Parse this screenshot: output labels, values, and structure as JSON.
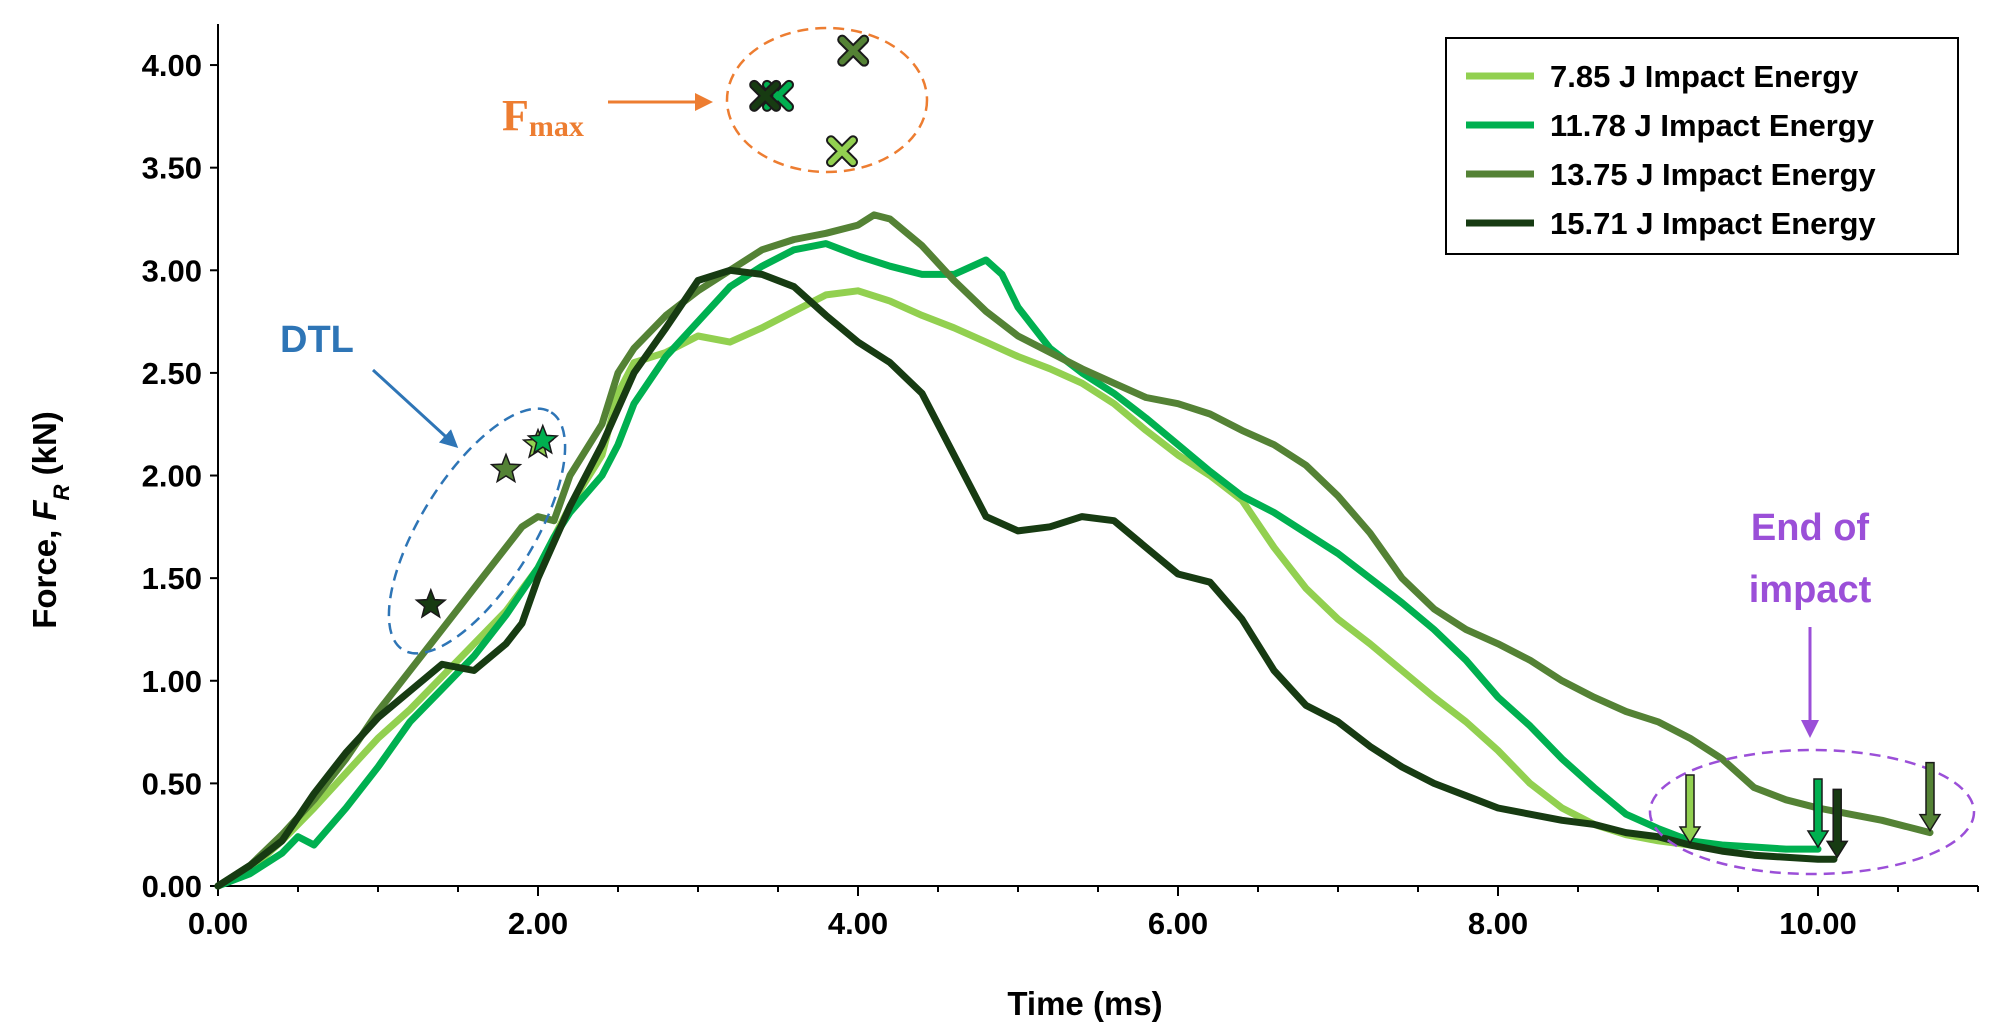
{
  "chart_data": {
    "type": "line",
    "title": "",
    "xlabel": "Time (ms)",
    "ylabel_prefix": "Force, ",
    "ylabel_var": "F",
    "ylabel_sub": "R",
    "ylabel_suffix": " (kN)",
    "xlim": [
      0,
      11
    ],
    "ylim": [
      0,
      4.2
    ],
    "xticks": [
      0,
      2,
      4,
      6,
      8,
      10
    ],
    "yticks": [
      0,
      0.5,
      1,
      1.5,
      2,
      2.5,
      3,
      3.5,
      4
    ],
    "xtick_labels": [
      "0.00",
      "2.00",
      "4.00",
      "6.00",
      "8.00",
      "10.00"
    ],
    "ytick_labels": [
      "0.00",
      "0.50",
      "1.00",
      "1.50",
      "2.00",
      "2.50",
      "3.00",
      "3.50",
      "4.00"
    ],
    "legend_position": "top-right",
    "series": [
      {
        "name": "7.85 J Impact Energy",
        "color": "#92D050",
        "x": [
          0,
          0.2,
          0.4,
          0.6,
          0.8,
          1.0,
          1.2,
          1.4,
          1.6,
          1.8,
          2.0,
          2.1,
          2.2,
          2.4,
          2.5,
          2.6,
          2.8,
          3.0,
          3.2,
          3.4,
          3.6,
          3.8,
          4.0,
          4.2,
          4.4,
          4.6,
          4.8,
          5.0,
          5.2,
          5.4,
          5.6,
          5.8,
          6.0,
          6.2,
          6.4,
          6.6,
          6.8,
          7.0,
          7.2,
          7.4,
          7.6,
          7.8,
          8.0,
          8.2,
          8.4,
          8.6,
          8.8,
          9.0,
          9.2
        ],
        "y": [
          0,
          0.08,
          0.22,
          0.38,
          0.55,
          0.72,
          0.86,
          1.02,
          1.18,
          1.34,
          1.55,
          1.7,
          1.85,
          2.1,
          2.4,
          2.55,
          2.6,
          2.68,
          2.65,
          2.72,
          2.8,
          2.88,
          2.9,
          2.85,
          2.78,
          2.72,
          2.65,
          2.58,
          2.52,
          2.45,
          2.35,
          2.22,
          2.1,
          2.0,
          1.88,
          1.65,
          1.45,
          1.3,
          1.18,
          1.05,
          0.92,
          0.8,
          0.66,
          0.5,
          0.38,
          0.3,
          0.25,
          0.22,
          0.2
        ]
      },
      {
        "name": "11.78 J Impact Energy",
        "color": "#00B050",
        "x": [
          0,
          0.2,
          0.4,
          0.5,
          0.6,
          0.8,
          1.0,
          1.2,
          1.4,
          1.6,
          1.8,
          2.0,
          2.1,
          2.2,
          2.4,
          2.5,
          2.6,
          2.8,
          3.0,
          3.2,
          3.4,
          3.6,
          3.8,
          4.0,
          4.2,
          4.4,
          4.6,
          4.8,
          4.9,
          5.0,
          5.2,
          5.4,
          5.6,
          5.8,
          6.0,
          6.2,
          6.4,
          6.6,
          6.8,
          7.0,
          7.2,
          7.4,
          7.6,
          7.8,
          8.0,
          8.2,
          8.4,
          8.6,
          8.8,
          9.0,
          9.2,
          9.4,
          9.6,
          9.8,
          10.0
        ],
        "y": [
          0,
          0.06,
          0.16,
          0.24,
          0.2,
          0.38,
          0.58,
          0.8,
          0.96,
          1.12,
          1.32,
          1.55,
          1.7,
          1.82,
          2.0,
          2.15,
          2.35,
          2.58,
          2.75,
          2.92,
          3.02,
          3.1,
          3.13,
          3.07,
          3.02,
          2.98,
          2.98,
          3.05,
          2.98,
          2.82,
          2.62,
          2.5,
          2.4,
          2.28,
          2.15,
          2.02,
          1.9,
          1.82,
          1.72,
          1.62,
          1.5,
          1.38,
          1.25,
          1.1,
          0.92,
          0.78,
          0.62,
          0.48,
          0.35,
          0.28,
          0.22,
          0.2,
          0.19,
          0.18,
          0.18
        ]
      },
      {
        "name": "13.75 J Impact Energy",
        "color": "#548235",
        "x": [
          0,
          0.2,
          0.4,
          0.6,
          0.8,
          1.0,
          1.2,
          1.4,
          1.6,
          1.8,
          1.9,
          2.0,
          2.1,
          2.2,
          2.4,
          2.5,
          2.6,
          2.8,
          3.0,
          3.2,
          3.4,
          3.6,
          3.8,
          4.0,
          4.1,
          4.2,
          4.4,
          4.6,
          4.8,
          5.0,
          5.2,
          5.4,
          5.6,
          5.8,
          6.0,
          6.2,
          6.4,
          6.6,
          6.8,
          7.0,
          7.2,
          7.4,
          7.6,
          7.8,
          8.0,
          8.2,
          8.4,
          8.6,
          8.8,
          9.0,
          9.2,
          9.4,
          9.6,
          9.8,
          10.0,
          10.2,
          10.4,
          10.6,
          10.7
        ],
        "y": [
          0,
          0.1,
          0.25,
          0.42,
          0.62,
          0.85,
          1.05,
          1.25,
          1.45,
          1.65,
          1.75,
          1.8,
          1.78,
          2.0,
          2.25,
          2.5,
          2.62,
          2.78,
          2.9,
          3.0,
          3.1,
          3.15,
          3.18,
          3.22,
          3.27,
          3.25,
          3.12,
          2.95,
          2.8,
          2.68,
          2.6,
          2.52,
          2.45,
          2.38,
          2.35,
          2.3,
          2.22,
          2.15,
          2.05,
          1.9,
          1.72,
          1.5,
          1.35,
          1.25,
          1.18,
          1.1,
          1.0,
          0.92,
          0.85,
          0.8,
          0.72,
          0.62,
          0.48,
          0.42,
          0.38,
          0.35,
          0.32,
          0.28,
          0.26
        ]
      },
      {
        "name": "15.71 J Impact Energy",
        "color": "#173B12",
        "x": [
          0,
          0.2,
          0.4,
          0.6,
          0.8,
          1.0,
          1.2,
          1.4,
          1.6,
          1.8,
          1.9,
          2.0,
          2.2,
          2.4,
          2.6,
          2.8,
          3.0,
          3.2,
          3.4,
          3.6,
          3.8,
          4.0,
          4.2,
          4.4,
          4.6,
          4.8,
          5.0,
          5.2,
          5.4,
          5.6,
          5.8,
          6.0,
          6.2,
          6.4,
          6.6,
          6.8,
          7.0,
          7.2,
          7.4,
          7.6,
          7.8,
          8.0,
          8.2,
          8.4,
          8.6,
          8.8,
          9.0,
          9.2,
          9.4,
          9.6,
          9.8,
          10.0,
          10.1
        ],
        "y": [
          0,
          0.1,
          0.22,
          0.45,
          0.65,
          0.82,
          0.95,
          1.08,
          1.05,
          1.18,
          1.28,
          1.5,
          1.85,
          2.15,
          2.5,
          2.72,
          2.95,
          3.0,
          2.98,
          2.92,
          2.78,
          2.65,
          2.55,
          2.4,
          2.1,
          1.8,
          1.73,
          1.75,
          1.8,
          1.78,
          1.65,
          1.52,
          1.48,
          1.3,
          1.05,
          0.88,
          0.8,
          0.68,
          0.58,
          0.5,
          0.44,
          0.38,
          0.35,
          0.32,
          0.3,
          0.26,
          0.24,
          0.2,
          0.17,
          0.15,
          0.14,
          0.13,
          0.13
        ]
      }
    ],
    "fmax_points": [
      {
        "series": 0,
        "x": 3.9,
        "y": 3.58
      },
      {
        "series": 1,
        "x": 3.5,
        "y": 3.85
      },
      {
        "series": 2,
        "x": 3.97,
        "y": 4.07
      },
      {
        "series": 3,
        "x": 3.42,
        "y": 3.85
      }
    ],
    "dtl_points": [
      {
        "series": 0,
        "x": 2.0,
        "y": 2.15
      },
      {
        "series": 1,
        "x": 2.03,
        "y": 2.17
      },
      {
        "series": 2,
        "x": 1.8,
        "y": 2.03
      },
      {
        "series": 3,
        "x": 1.33,
        "y": 1.37
      }
    ],
    "end_points": [
      {
        "series": 0,
        "x": 9.2,
        "y": 0.2
      },
      {
        "series": 1,
        "x": 10.0,
        "y": 0.18
      },
      {
        "series": 3,
        "x": 10.12,
        "y": 0.13
      },
      {
        "series": 2,
        "x": 10.7,
        "y": 0.26
      }
    ],
    "annotations": {
      "dtl": "DTL",
      "fmax_main": "F",
      "fmax_sub": "max",
      "end_line1": "End of",
      "end_line2": "impact"
    },
    "annotation_colors": {
      "dtl": "#2E75B6",
      "fmax": "#ED7D31",
      "end": "#9B4FD8"
    }
  }
}
